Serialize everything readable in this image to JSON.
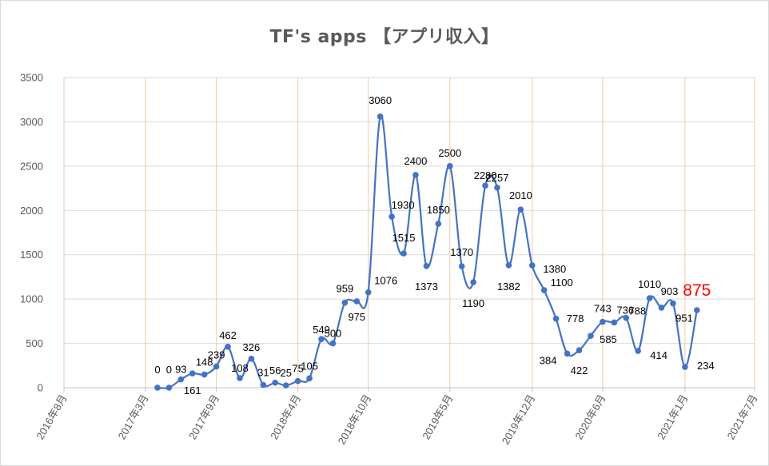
{
  "chart_data": {
    "type": "line",
    "title": "TF's apps 【アプリ収入】",
    "xlabel": "",
    "ylabel": "",
    "ylim": [
      0,
      3500
    ],
    "yticks": [
      0,
      500,
      1000,
      1500,
      2000,
      2500,
      3000,
      3500
    ],
    "xlim": [
      "2016-08-01",
      "2021-07-01"
    ],
    "xticks": [
      {
        "date": "2016-08-01",
        "label": "2016年8月"
      },
      {
        "date": "2017-03-01",
        "label": "2017年3月"
      },
      {
        "date": "2017-09-01",
        "label": "2017年9月"
      },
      {
        "date": "2018-04-01",
        "label": "2018年4月"
      },
      {
        "date": "2018-10-01",
        "label": "2018年10月"
      },
      {
        "date": "2019-05-01",
        "label": "2019年5月"
      },
      {
        "date": "2019-12-01",
        "label": "2019年12月"
      },
      {
        "date": "2020-06-01",
        "label": "2020年6月"
      },
      {
        "date": "2021-01-01",
        "label": "2021年1月"
      },
      {
        "date": "2021-07-01",
        "label": "2021年7月"
      }
    ],
    "grid": "vertical and horizontal",
    "smooth": true,
    "color": "#4472c4",
    "gridline_color": "#f4c7a8",
    "highlight_color": "#ff0000",
    "highlight_label": "875",
    "series": [
      {
        "points": [
          {
            "x": "2017-04-01",
            "y": 0,
            "label": "0"
          },
          {
            "x": "2017-05-01",
            "y": 0,
            "label": "0"
          },
          {
            "x": "2017-06-01",
            "y": 93,
            "label": "93"
          },
          {
            "x": "2017-07-01",
            "y": 161,
            "label": "161"
          },
          {
            "x": "2017-08-01",
            "y": 148,
            "label": "148"
          },
          {
            "x": "2017-09-01",
            "y": 239,
            "label": "239"
          },
          {
            "x": "2017-10-01",
            "y": 462,
            "label": "462"
          },
          {
            "x": "2017-11-01",
            "y": 108,
            "label": "108"
          },
          {
            "x": "2017-12-01",
            "y": 326,
            "label": "326"
          },
          {
            "x": "2018-01-01",
            "y": 31,
            "label": "31"
          },
          {
            "x": "2018-02-01",
            "y": 56,
            "label": "56"
          },
          {
            "x": "2018-03-01",
            "y": 25,
            "label": "25"
          },
          {
            "x": "2018-04-01",
            "y": 75,
            "label": "75"
          },
          {
            "x": "2018-05-01",
            "y": 105,
            "label": "105"
          },
          {
            "x": "2018-06-01",
            "y": 549,
            "label": "549"
          },
          {
            "x": "2018-07-01",
            "y": 500,
            "label": "500"
          },
          {
            "x": "2018-08-01",
            "y": 959,
            "label": "959"
          },
          {
            "x": "2018-09-01",
            "y": 975,
            "label": "975"
          },
          {
            "x": "2018-10-01",
            "y": 1076,
            "label": "1076"
          },
          {
            "x": "2018-11-01",
            "y": 3060,
            "label": "3060"
          },
          {
            "x": "2018-12-01",
            "y": 1930,
            "label": "1930"
          },
          {
            "x": "2019-01-01",
            "y": 1515,
            "label": "1515"
          },
          {
            "x": "2019-02-01",
            "y": 2400,
            "label": "2400"
          },
          {
            "x": "2019-03-01",
            "y": 1373,
            "label": "1373"
          },
          {
            "x": "2019-04-01",
            "y": 1850,
            "label": "1850"
          },
          {
            "x": "2019-05-01",
            "y": 2500,
            "label": "2500"
          },
          {
            "x": "2019-06-01",
            "y": 1370,
            "label": "1370"
          },
          {
            "x": "2019-07-01",
            "y": 1190,
            "label": "1190"
          },
          {
            "x": "2019-08-01",
            "y": 2280,
            "label": "2280"
          },
          {
            "x": "2019-09-01",
            "y": 2257,
            "label": "2257"
          },
          {
            "x": "2019-10-01",
            "y": 1382,
            "label": "1382"
          },
          {
            "x": "2019-11-01",
            "y": 2010,
            "label": "2010"
          },
          {
            "x": "2019-12-01",
            "y": 1380,
            "label": "1380"
          },
          {
            "x": "2020-01-01",
            "y": 1100,
            "label": "1100"
          },
          {
            "x": "2020-02-01",
            "y": 778,
            "label": "778"
          },
          {
            "x": "2020-03-01",
            "y": 384,
            "label": "384"
          },
          {
            "x": "2020-04-01",
            "y": 422,
            "label": "422"
          },
          {
            "x": "2020-05-01",
            "y": 585,
            "label": "585"
          },
          {
            "x": "2020-06-01",
            "y": 743,
            "label": "743"
          },
          {
            "x": "2020-07-01",
            "y": 736,
            "label": "736"
          },
          {
            "x": "2020-08-01",
            "y": 788,
            "label": "788"
          },
          {
            "x": "2020-09-01",
            "y": 414,
            "label": "414"
          },
          {
            "x": "2020-10-01",
            "y": 1010,
            "label": "1010"
          },
          {
            "x": "2020-11-01",
            "y": 903,
            "label": "903"
          },
          {
            "x": "2020-12-01",
            "y": 951,
            "label": "951"
          },
          {
            "x": "2021-01-01",
            "y": 234,
            "label": "234"
          },
          {
            "x": "2021-02-01",
            "y": 875,
            "label": "875"
          }
        ]
      }
    ]
  }
}
